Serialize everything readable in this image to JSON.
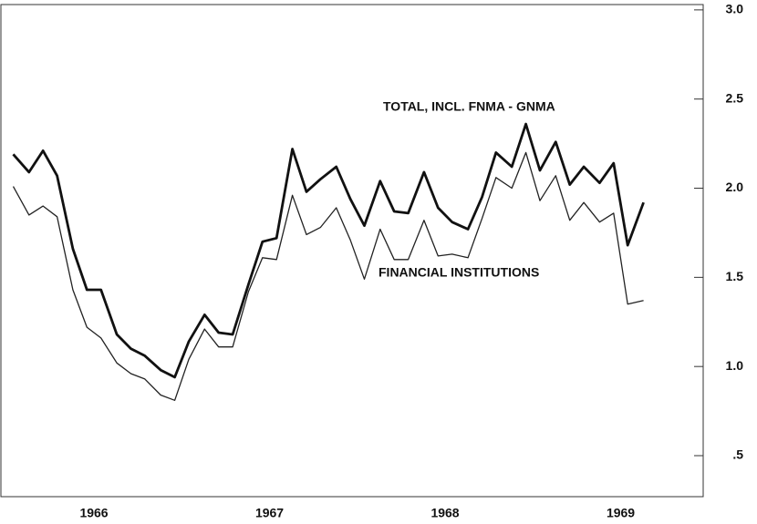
{
  "chart_data": {
    "type": "line",
    "x": [
      1966.04,
      1966.13,
      1966.21,
      1966.29,
      1966.38,
      1966.46,
      1966.54,
      1966.63,
      1966.71,
      1966.79,
      1966.88,
      1966.96,
      1967.04,
      1967.13,
      1967.21,
      1967.29,
      1967.38,
      1967.46,
      1967.54,
      1967.63,
      1967.71,
      1967.79,
      1967.88,
      1967.96,
      1968.04,
      1968.13,
      1968.21,
      1968.29,
      1968.38,
      1968.46,
      1968.54,
      1968.63,
      1968.71,
      1968.79,
      1968.88,
      1968.96,
      1969.04,
      1969.13,
      1969.21,
      1969.29,
      1969.38,
      1969.46,
      1969.54,
      1969.63
    ],
    "series": [
      {
        "name": "TOTAL, INCL. FNMA - GNMA",
        "color": "#111111",
        "values": [
          2.19,
          2.09,
          2.21,
          2.07,
          1.66,
          1.43,
          1.43,
          1.18,
          1.1,
          1.06,
          0.98,
          0.94,
          1.14,
          1.29,
          1.19,
          1.18,
          1.46,
          1.7,
          1.72,
          2.22,
          1.98,
          2.05,
          2.12,
          1.94,
          1.79,
          2.04,
          1.87,
          1.86,
          2.09,
          1.89,
          1.81,
          1.77,
          1.95,
          2.2,
          2.12,
          2.36,
          2.1,
          2.26,
          2.02,
          2.12,
          2.03,
          2.14,
          1.68,
          1.92
        ]
      },
      {
        "name": "FINANCIAL INSTITUTIONS",
        "color": "#222222",
        "values": [
          2.01,
          1.85,
          1.9,
          1.84,
          1.43,
          1.22,
          1.16,
          1.02,
          0.96,
          0.93,
          0.84,
          0.81,
          1.04,
          1.21,
          1.11,
          1.11,
          1.42,
          1.61,
          1.6,
          1.96,
          1.74,
          1.78,
          1.89,
          1.71,
          1.49,
          1.77,
          1.6,
          1.6,
          1.82,
          1.62,
          1.63,
          1.61,
          1.83,
          2.06,
          2.0,
          2.2,
          1.93,
          2.07,
          1.82,
          1.92,
          1.81,
          1.86,
          1.35,
          1.37
        ]
      }
    ],
    "xlim": [
      1965.97,
      1969.97
    ],
    "xticks": [
      {
        "value": 1966.5,
        "label": "1966"
      },
      {
        "value": 1967.5,
        "label": "1967"
      },
      {
        "value": 1968.5,
        "label": "1968"
      },
      {
        "value": 1969.5,
        "label": "1969"
      }
    ],
    "ylim": [
      0.27,
      3.03
    ],
    "yticks": [
      {
        "value": 0.5,
        "label": ".5"
      },
      {
        "value": 1,
        "label": "1.0"
      },
      1.5,
      {
        "value": 2,
        "label": "2.0"
      },
      2.5,
      {
        "value": 3,
        "label": "3.0"
      }
    ],
    "y_axis_side": "right"
  }
}
